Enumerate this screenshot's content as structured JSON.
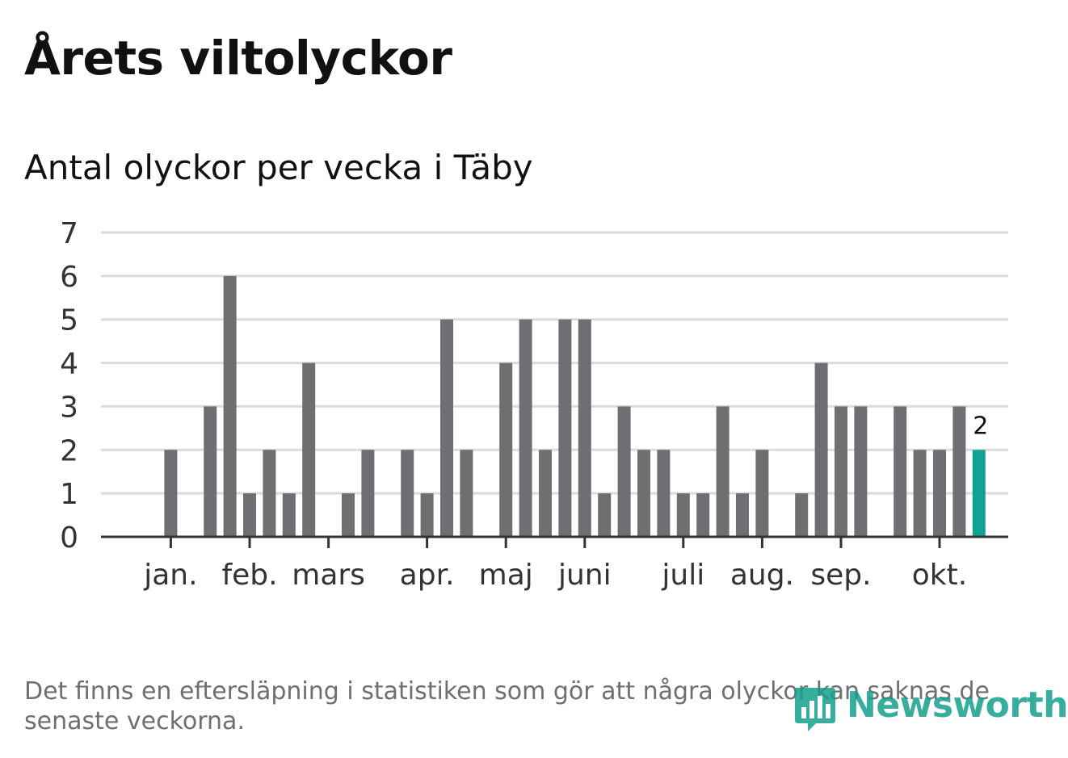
{
  "title": "Årets viltolyckor",
  "subtitle": "Antal olyckor per vecka i Täby",
  "footnote": "Det finns en eftersläpning i statistiken som gör att några olyckor kan saknas de senaste veckorna.",
  "logo": {
    "text": "Newsworthy",
    "icon": "newsworthy-bar-chart-icon"
  },
  "colors": {
    "bar": "#6f6e73",
    "highlight": "#12a294",
    "grid": "#dcdcdc",
    "axis": "#333333",
    "text": "#333333"
  },
  "chart_data": {
    "type": "bar",
    "xlabel": "",
    "ylabel": "",
    "ylim": [
      0,
      7
    ],
    "yticks": [
      0,
      1,
      2,
      3,
      4,
      5,
      6,
      7
    ],
    "grid": true,
    "week_count": 42,
    "values": [
      0,
      2,
      0,
      3,
      6,
      1,
      2,
      1,
      4,
      0,
      1,
      2,
      0,
      2,
      1,
      5,
      2,
      0,
      4,
      5,
      2,
      5,
      5,
      1,
      3,
      2,
      2,
      1,
      1,
      3,
      1,
      2,
      0,
      1,
      4,
      3,
      3,
      0,
      3,
      2,
      2,
      3,
      2
    ],
    "highlight_index": 42,
    "highlight_label": "2",
    "month_ticks": [
      {
        "label": "jan.",
        "pos": 1.0
      },
      {
        "label": "feb.",
        "pos": 5.0
      },
      {
        "label": "mars",
        "pos": 9.0
      },
      {
        "label": "apr.",
        "pos": 14.0
      },
      {
        "label": "maj",
        "pos": 18.0
      },
      {
        "label": "juni",
        "pos": 22.0
      },
      {
        "label": "juli",
        "pos": 27.0
      },
      {
        "label": "aug.",
        "pos": 31.0
      },
      {
        "label": "sep.",
        "pos": 35.0
      },
      {
        "label": "okt.",
        "pos": 40.0
      }
    ]
  }
}
